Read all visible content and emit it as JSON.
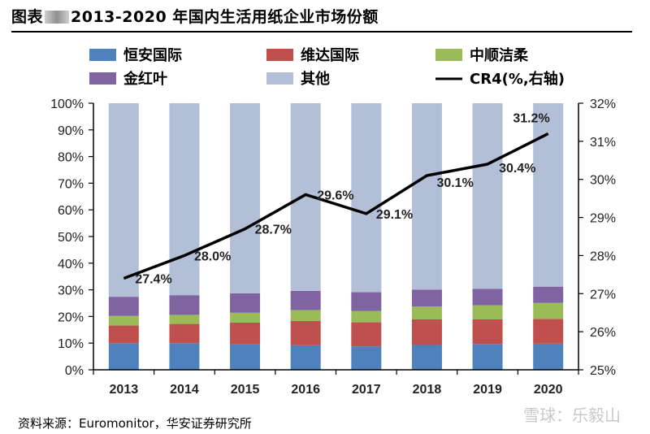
{
  "title": {
    "prefix": "图表",
    "main": "2013-2020 年国内生活用纸企业市场份额"
  },
  "source": "资料来源：Euromonitor，华安证券研究所",
  "watermark": "雪球：乐毅山",
  "colors": {
    "hengan": "#4f81bd",
    "vinda": "#c0504d",
    "zhongshun": "#9bbb59",
    "kimberly": "#8064a2",
    "other": "#b3bfd6",
    "cr4": "#000000"
  },
  "chart_data": {
    "type": "bar",
    "stacked": true,
    "categories": [
      "2013",
      "2014",
      "2015",
      "2016",
      "2017",
      "2018",
      "2019",
      "2020"
    ],
    "series": [
      {
        "name": "恒安国际",
        "values": [
          10,
          10,
          9.5,
          9.2,
          8.8,
          9.3,
          9.7,
          9.8
        ],
        "color_key": "hengan"
      },
      {
        "name": "维达国际",
        "values": [
          6.6,
          7.2,
          8.2,
          9.1,
          9,
          9.6,
          9.2,
          9.3
        ],
        "color_key": "vinda"
      },
      {
        "name": "中顺洁柔",
        "values": [
          3.6,
          3.4,
          3.7,
          4.1,
          4.3,
          4.8,
          5.3,
          6
        ],
        "color_key": "zhongshun"
      },
      {
        "name": "金红叶",
        "values": [
          7.2,
          7.4,
          7.3,
          7.2,
          7,
          6.4,
          6.2,
          6.1
        ],
        "color_key": "kimberly"
      },
      {
        "name": "其他",
        "values": [
          72.6,
          72,
          71.3,
          70.4,
          70.9,
          69.9,
          69.6,
          68.8
        ],
        "color_key": "other"
      }
    ],
    "line": {
      "name": "CR4(%,右轴)",
      "values": [
        27.4,
        28.0,
        28.7,
        29.6,
        29.1,
        30.1,
        30.4,
        31.2
      ],
      "labels": [
        "27.4%",
        "28.0%",
        "28.7%",
        "29.6%",
        "29.1%",
        "30.1%",
        "30.4%",
        "31.2%"
      ],
      "axis": "right"
    },
    "y_left": {
      "lim": [
        0,
        100
      ],
      "ticks": [
        "0%",
        "10%",
        "20%",
        "30%",
        "40%",
        "50%",
        "60%",
        "70%",
        "80%",
        "90%",
        "100%"
      ]
    },
    "y_right": {
      "lim": [
        25,
        32
      ],
      "ticks": [
        "25%",
        "26%",
        "27%",
        "28%",
        "29%",
        "30%",
        "31%",
        "32%"
      ]
    },
    "legend": {
      "position": "top"
    },
    "grid": false
  }
}
